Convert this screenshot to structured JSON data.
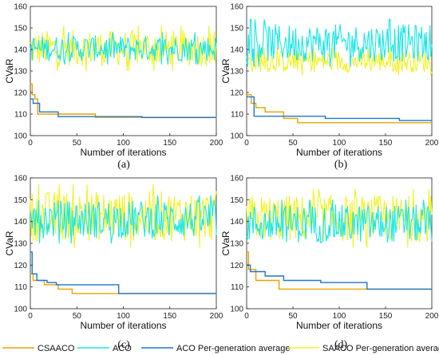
{
  "legend": [
    {
      "name": "CSAACO",
      "color": "#E8A200"
    },
    {
      "name": "ACO",
      "color": "#19E6E6"
    },
    {
      "name": "ACO Per-generation average",
      "color": "#1F77C9"
    },
    {
      "name": "SAACO Per-generation average",
      "color": "#F2F222"
    }
  ],
  "chart_data": [
    {
      "panel": "(a)",
      "type": "line",
      "xlabel": "Number of iterations",
      "ylabel": "CVaR",
      "xlim": [
        0,
        200
      ],
      "ylim": [
        100,
        160
      ],
      "xticks": [
        0,
        50,
        100,
        150,
        200
      ],
      "yticks": [
        100,
        110,
        120,
        130,
        140,
        150,
        160
      ],
      "noisy": {
        "aco": [
          133,
          148
        ],
        "saaco": [
          130,
          151
        ]
      },
      "series": [
        {
          "name": "CSAACO",
          "steps": [
            [
              0,
              124
            ],
            [
              2,
              119
            ],
            [
              5,
              117
            ],
            [
              8,
              110
            ],
            [
              70,
              108.5
            ],
            [
              200,
              108
            ]
          ]
        },
        {
          "name": "ACO Per-generation average",
          "steps": [
            [
              0,
              117
            ],
            [
              3,
              115
            ],
            [
              10,
              111
            ],
            [
              30,
              108.8
            ],
            [
              120,
              108.4
            ],
            [
              200,
              108.4
            ]
          ]
        }
      ]
    },
    {
      "panel": "(b)",
      "type": "line",
      "xlabel": "Number of iterations",
      "ylabel": "CVaR",
      "xlim": [
        0,
        200
      ],
      "ylim": [
        100,
        160
      ],
      "xticks": [
        0,
        50,
        100,
        150,
        200
      ],
      "yticks": [
        100,
        110,
        120,
        130,
        140,
        150,
        160
      ],
      "noisy": {
        "aco": [
          132,
          154
        ],
        "saaco": [
          128,
          141
        ]
      },
      "series": [
        {
          "name": "CSAACO",
          "steps": [
            [
              0,
              119
            ],
            [
              5,
              115
            ],
            [
              10,
              113
            ],
            [
              20,
              111
            ],
            [
              40,
              108
            ],
            [
              55,
              106
            ],
            [
              200,
              106
            ]
          ]
        },
        {
          "name": "ACO Per-generation average",
          "steps": [
            [
              0,
              118
            ],
            [
              8,
              109
            ],
            [
              85,
              108
            ],
            [
              165,
              107
            ],
            [
              200,
              107
            ]
          ]
        }
      ]
    },
    {
      "panel": "(c)",
      "type": "line",
      "xlabel": "Number of iterations",
      "ylabel": "CVaR",
      "xlim": [
        0,
        200
      ],
      "ylim": [
        100,
        160
      ],
      "xticks": [
        0,
        50,
        100,
        150,
        200
      ],
      "yticks": [
        100,
        110,
        120,
        130,
        140,
        150,
        160
      ],
      "noisy": {
        "aco": [
          130,
          152
        ],
        "saaco": [
          128,
          157
        ]
      },
      "series": [
        {
          "name": "CSAACO",
          "steps": [
            [
              0,
              116
            ],
            [
              3,
              113
            ],
            [
              15,
              111
            ],
            [
              30,
              109
            ],
            [
              45,
              107
            ],
            [
              200,
              107
            ]
          ]
        },
        {
          "name": "ACO Per-generation average",
          "steps": [
            [
              0,
              126
            ],
            [
              2,
              116
            ],
            [
              7,
              113
            ],
            [
              18,
              112
            ],
            [
              28,
              111
            ],
            [
              95,
              107
            ],
            [
              200,
              107
            ]
          ]
        }
      ]
    },
    {
      "panel": "(d)",
      "type": "line",
      "xlabel": "Number of iterations",
      "ylabel": "CVaR",
      "xlim": [
        0,
        200
      ],
      "ylim": [
        100,
        160
      ],
      "xticks": [
        0,
        50,
        100,
        150,
        200
      ],
      "yticks": [
        100,
        110,
        120,
        130,
        140,
        150,
        160
      ],
      "noisy": {
        "aco": [
          128,
          150
        ],
        "saaco": [
          128,
          155
        ]
      },
      "series": [
        {
          "name": "CSAACO",
          "steps": [
            [
              0,
              126
            ],
            [
              2,
              118
            ],
            [
              10,
              113
            ],
            [
              35,
              109
            ],
            [
              200,
              109
            ]
          ]
        },
        {
          "name": "ACO Per-generation average",
          "steps": [
            [
              0,
              120
            ],
            [
              4,
              117
            ],
            [
              20,
              115
            ],
            [
              40,
              113
            ],
            [
              80,
              112
            ],
            [
              130,
              109
            ],
            [
              200,
              109
            ]
          ]
        }
      ]
    }
  ]
}
